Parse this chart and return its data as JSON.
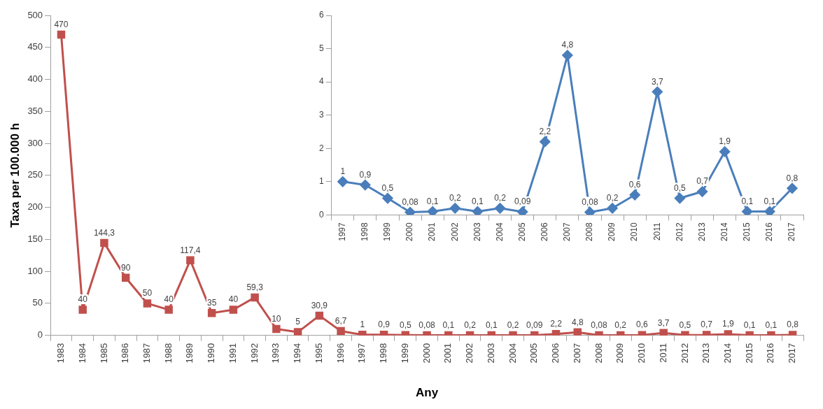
{
  "chart_data": [
    {
      "type": "line",
      "ylabel": "Taxa per 100.000 h",
      "xlabel": "Any",
      "marker": "square",
      "ylim": [
        0,
        500
      ],
      "yticks": [
        0,
        50,
        100,
        150,
        200,
        250,
        300,
        350,
        400,
        450,
        500
      ],
      "categories": [
        "1983",
        "1984",
        "1985",
        "1986",
        "1987",
        "1988",
        "1989",
        "1990",
        "1991",
        "1992",
        "1993",
        "1994",
        "1995",
        "1996",
        "1997",
        "1998",
        "1999",
        "2000",
        "2001",
        "2002",
        "2003",
        "2004",
        "2005",
        "2006",
        "2007",
        "2008",
        "2009",
        "2010",
        "2011",
        "2012",
        "2013",
        "2014",
        "2015",
        "2016",
        "2017"
      ],
      "series": [
        {
          "color": "#c0504d",
          "values": [
            470,
            40,
            144.3,
            90,
            50,
            40,
            117.4,
            35,
            40,
            59.3,
            10,
            5,
            30.9,
            6.7,
            1,
            0.9,
            0.5,
            0.08,
            0.1,
            0.2,
            0.1,
            0.2,
            0.09,
            2.2,
            4.8,
            0.08,
            0.2,
            0.6,
            3.7,
            0.5,
            0.7,
            1.9,
            0.1,
            0.1,
            0.8
          ],
          "value_labels": [
            "470",
            "40",
            "144,3",
            "90",
            "50",
            "40",
            "117,4",
            "35",
            "40",
            "59,3",
            "10",
            "5",
            "30,9",
            "6,7",
            "1",
            "0,9",
            "0,5",
            "0,08",
            "0,1",
            "0,2",
            "0,1",
            "0,2",
            "0,09",
            "2,2",
            "4,8",
            "0,08",
            "0,2",
            "0,6",
            "3,7",
            "0,5",
            "0,7",
            "1,9",
            "0,1",
            "0,1",
            "0,8"
          ]
        }
      ]
    },
    {
      "type": "line",
      "marker": "diamond",
      "ylim": [
        0,
        6
      ],
      "yticks": [
        0,
        1,
        2,
        3,
        4,
        5,
        6
      ],
      "categories": [
        "1997",
        "1998",
        "1999",
        "2000",
        "2001",
        "2002",
        "2003",
        "2004",
        "2005",
        "2006",
        "2007",
        "2008",
        "2009",
        "2010",
        "2011",
        "2012",
        "2013",
        "2014",
        "2015",
        "2016",
        "2017"
      ],
      "series": [
        {
          "color": "#4a7ebb",
          "values": [
            1,
            0.9,
            0.5,
            0.08,
            0.1,
            0.2,
            0.1,
            0.2,
            0.09,
            2.2,
            4.8,
            0.08,
            0.2,
            0.6,
            3.7,
            0.5,
            0.7,
            1.9,
            0.1,
            0.1,
            0.8
          ],
          "value_labels": [
            "1",
            "0,9",
            "0,5",
            "0,08",
            "0,1",
            "0,2",
            "0,1",
            "0,2",
            "0,09",
            "2,2",
            "4,8",
            "0,08",
            "0,2",
            "0,6",
            "3,7",
            "0,5",
            "0,7",
            "1,9",
            "0,1",
            "0,1",
            "0,8"
          ]
        }
      ]
    }
  ]
}
